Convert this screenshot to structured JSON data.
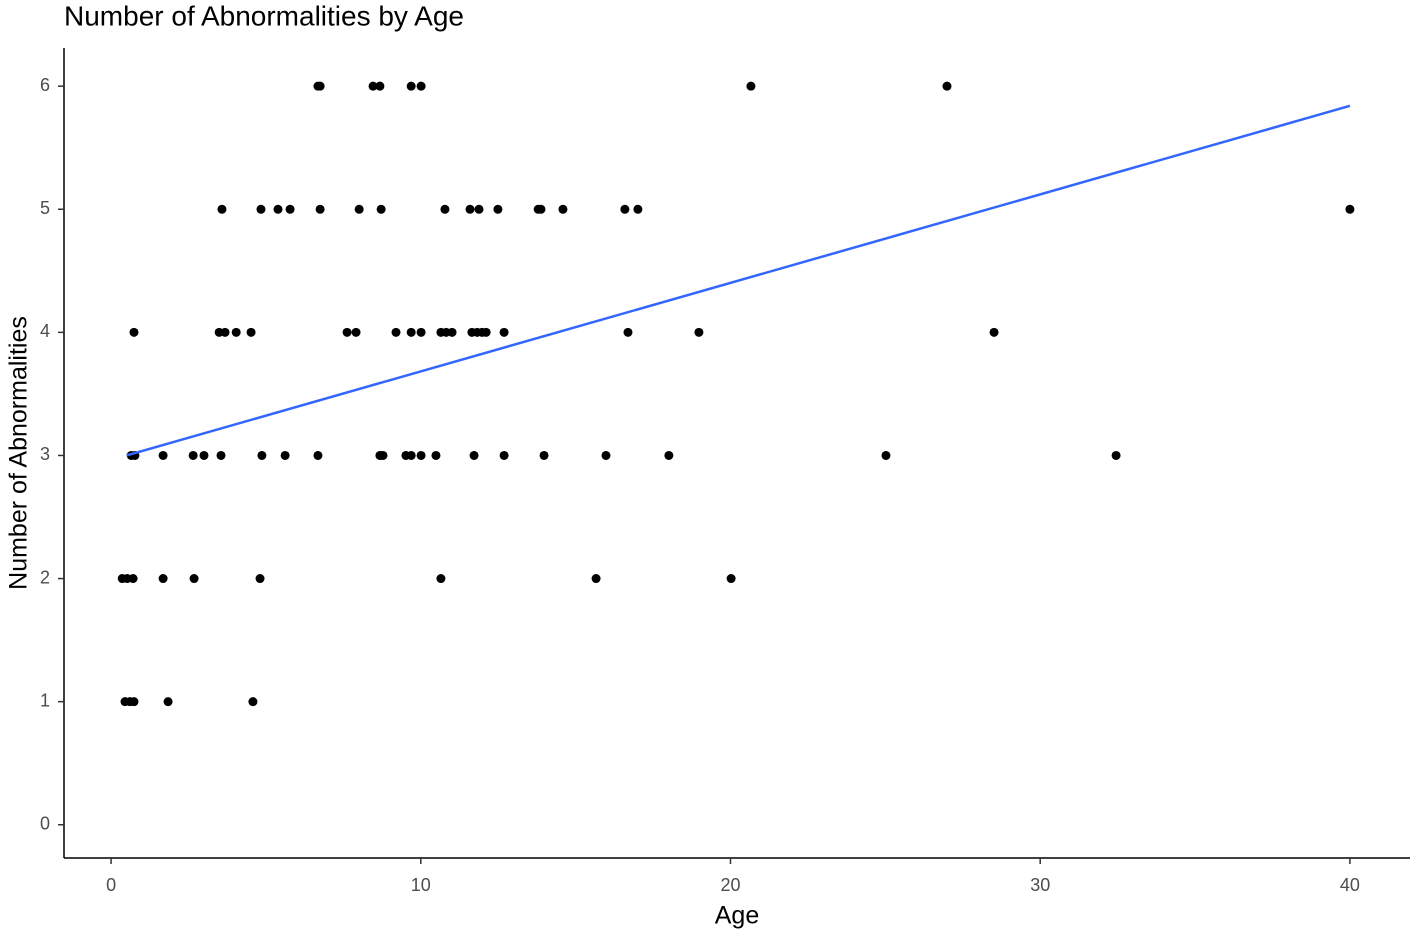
{
  "chart_data": {
    "type": "scatter",
    "title": "Number of Abnormalities by Age",
    "x_label": "Age",
    "y_label": "Number of Abnormalities",
    "xlim": [
      -1.52,
      41.94
    ],
    "ylim": [
      -0.27,
      6.31
    ],
    "xticks": [
      0,
      10,
      20,
      30,
      40
    ],
    "yticks": [
      0,
      1,
      2,
      3,
      4,
      5,
      6
    ],
    "grid": false,
    "series": [
      {
        "color": "#000000",
        "x": [
          6.68,
          6.75,
          8.46,
          8.68,
          9.69,
          10.01,
          20.66,
          26.99,
          3.58,
          4.84,
          5.39,
          5.78,
          6.75,
          8.01,
          8.72,
          10.78,
          11.59,
          11.88,
          12.49,
          13.79,
          13.88,
          14.59,
          16.59,
          17.01,
          40.0,
          0.74,
          3.49,
          3.68,
          4.04,
          4.52,
          7.62,
          7.91,
          9.2,
          9.69,
          10.01,
          10.65,
          10.82,
          11.01,
          11.65,
          11.82,
          11.98,
          12.11,
          12.69,
          16.69,
          18.98,
          28.51,
          0.65,
          0.77,
          1.68,
          2.65,
          3.0,
          3.55,
          4.87,
          5.62,
          6.68,
          8.68,
          8.78,
          9.52,
          9.69,
          10.01,
          10.49,
          11.72,
          12.69,
          13.98,
          15.98,
          18.01,
          25.02,
          32.45,
          0.36,
          0.52,
          0.71,
          1.68,
          2.68,
          4.81,
          10.65,
          15.66,
          20.02,
          0.45,
          0.61,
          0.74,
          1.84,
          4.58
        ],
        "values": [
          6,
          6,
          6,
          6,
          6,
          6,
          6,
          6,
          5,
          5,
          5,
          5,
          5,
          5,
          5,
          5,
          5,
          5,
          5,
          5,
          5,
          5,
          5,
          5,
          5,
          4,
          4,
          4,
          4,
          4,
          4,
          4,
          4,
          4,
          4,
          4,
          4,
          4,
          4,
          4,
          4,
          4,
          4,
          4,
          4,
          4,
          3,
          3,
          3,
          3,
          3,
          3,
          3,
          3,
          3,
          3,
          3,
          3,
          3,
          3,
          3,
          3,
          3,
          3,
          3,
          3,
          3,
          3,
          2,
          2,
          2,
          2,
          2,
          2,
          2,
          2,
          2,
          1,
          1,
          1,
          1,
          1
        ]
      }
    ],
    "trend_line": {
      "color": "#3366ff",
      "x": [
        0.5,
        40
      ],
      "values": [
        3.0,
        5.84
      ]
    }
  }
}
